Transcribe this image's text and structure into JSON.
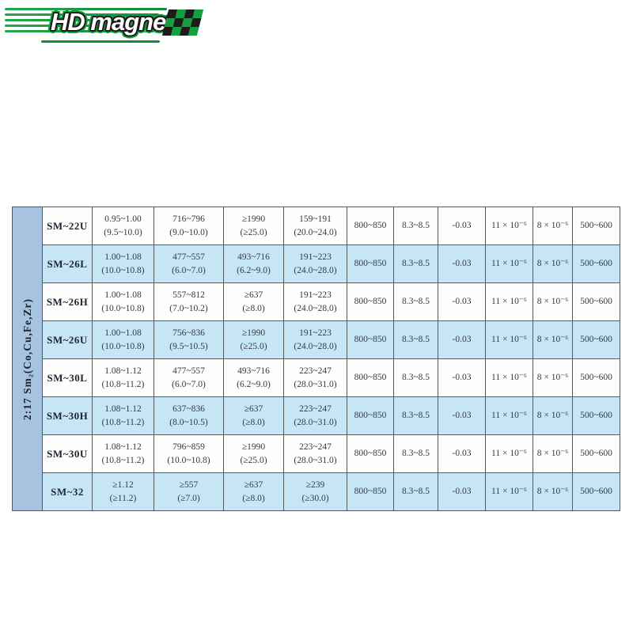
{
  "logo": {
    "brand": "HD magnet",
    "colors": {
      "green": "#169e3e",
      "dark": "#1d1a1b",
      "white": "#ffffff"
    },
    "checker_rows": 3,
    "checker_cols": 4
  },
  "table": {
    "group_label": "2:17  Sm₂(Co,Cu,Fe,Zr)",
    "colors": {
      "strip_bg": "#a6c3e0",
      "row_white_bg": "#fefefc",
      "row_blue_bg": "#c7e6f5",
      "grid_line": "#585858",
      "text": "#333a44"
    },
    "rows": [
      {
        "grade": "SM~22U",
        "cells": [
          [
            "0.95~1.00",
            "(9.5~10.0)"
          ],
          [
            "716~796",
            "(9.0~10.0)"
          ],
          [
            "≥1990",
            "(≥25.0)"
          ],
          [
            "159~191",
            "(20.0~24.0)"
          ],
          [
            "800~850"
          ],
          [
            "8.3~8.5"
          ],
          [
            "-0.03"
          ],
          [
            "11 × 10⁻⁶"
          ],
          [
            "8 × 10⁻⁶"
          ],
          [
            "500~600"
          ]
        ]
      },
      {
        "grade": "SM~26L",
        "cells": [
          [
            "1.00~1.08",
            "(10.0~10.8)"
          ],
          [
            "477~557",
            "(6.0~7.0)"
          ],
          [
            "493~716",
            "(6.2~9.0)"
          ],
          [
            "191~223",
            "(24.0~28.0)"
          ],
          [
            "800~850"
          ],
          [
            "8.3~8.5"
          ],
          [
            "-0.03"
          ],
          [
            "11 × 10⁻⁶"
          ],
          [
            "8 × 10⁻⁶"
          ],
          [
            "500~600"
          ]
        ]
      },
      {
        "grade": "SM~26H",
        "cells": [
          [
            "1.00~1.08",
            "(10.0~10.8)"
          ],
          [
            "557~812",
            "(7.0~10.2)"
          ],
          [
            "≥637",
            "(≥8.0)"
          ],
          [
            "191~223",
            "(24.0~28.0)"
          ],
          [
            "800~850"
          ],
          [
            "8.3~8.5"
          ],
          [
            "-0.03"
          ],
          [
            "11 × 10⁻⁶"
          ],
          [
            "8 × 10⁻⁶"
          ],
          [
            "500~600"
          ]
        ]
      },
      {
        "grade": "SM~26U",
        "cells": [
          [
            "1.00~1.08",
            "(10.0~10.8)"
          ],
          [
            "756~836",
            "(9.5~10.5)"
          ],
          [
            "≥1990",
            "(≥25.0)"
          ],
          [
            "191~223",
            "(24.0~28.0)"
          ],
          [
            "800~850"
          ],
          [
            "8.3~8.5"
          ],
          [
            "-0.03"
          ],
          [
            "11 × 10⁻⁶"
          ],
          [
            "8 × 10⁻⁶"
          ],
          [
            "500~600"
          ]
        ]
      },
      {
        "grade": "SM~30L",
        "cells": [
          [
            "1.08~1.12",
            "(10.8~11.2)"
          ],
          [
            "477~557",
            "(6.0~7.0)"
          ],
          [
            "493~716",
            "(6.2~9.0)"
          ],
          [
            "223~247",
            "(28.0~31.0)"
          ],
          [
            "800~850"
          ],
          [
            "8.3~8.5"
          ],
          [
            "-0.03"
          ],
          [
            "11 × 10⁻⁶"
          ],
          [
            "8 × 10⁻⁶"
          ],
          [
            "500~600"
          ]
        ]
      },
      {
        "grade": "SM~30H",
        "cells": [
          [
            "1.08~1.12",
            "(10.8~11.2)"
          ],
          [
            "637~836",
            "(8.0~10.5)"
          ],
          [
            "≥637",
            "(≥8.0)"
          ],
          [
            "223~247",
            "(28.0~31.0)"
          ],
          [
            "800~850"
          ],
          [
            "8.3~8.5"
          ],
          [
            "-0.03"
          ],
          [
            "11 × 10⁻⁶"
          ],
          [
            "8 × 10⁻⁶"
          ],
          [
            "500~600"
          ]
        ]
      },
      {
        "grade": "SM~30U",
        "cells": [
          [
            "1.08~1.12",
            "(10.8~11.2)"
          ],
          [
            "796~859",
            "(10.0~10.8)"
          ],
          [
            "≥1990",
            "(≥25.0)"
          ],
          [
            "223~247",
            "(28.0~31.0)"
          ],
          [
            "800~850"
          ],
          [
            "8.3~8.5"
          ],
          [
            "-0.03"
          ],
          [
            "11 × 10⁻⁶"
          ],
          [
            "8 × 10⁻⁶"
          ],
          [
            "500~600"
          ]
        ]
      },
      {
        "grade": "SM~32",
        "cells": [
          [
            "≥1.12",
            "(≥11.2)"
          ],
          [
            "≥557",
            "(≥7.0)"
          ],
          [
            "≥637",
            "(≥8.0)"
          ],
          [
            "≥239",
            "(≥30.0)"
          ],
          [
            "800~850"
          ],
          [
            "8.3~8.5"
          ],
          [
            "-0.03"
          ],
          [
            "11 × 10⁻⁶"
          ],
          [
            "8 × 10⁻⁶"
          ],
          [
            "500~600"
          ]
        ]
      }
    ]
  }
}
